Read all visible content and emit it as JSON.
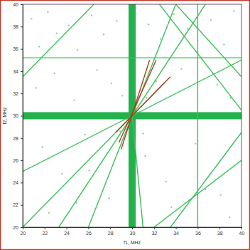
{
  "chart_data": {
    "type": "line",
    "xlabel": "f1, MHz",
    "ylabel": "f2, MHz",
    "xlim": [
      20,
      40
    ],
    "ylim": [
      20,
      40
    ],
    "xticks": [
      20,
      22,
      24,
      26,
      28,
      30,
      32,
      34,
      36,
      38,
      40
    ],
    "yticks": [
      20,
      22,
      24,
      26,
      28,
      30,
      32,
      34,
      36,
      38,
      40
    ],
    "grid": false,
    "series": [
      {
        "type": "scatter",
        "marker": "dot",
        "color": "#8fd49a",
        "x": [
          20.8,
          21.5,
          22.3,
          23.1,
          24.2,
          25.0,
          26.3,
          27.4,
          28.6,
          21.2,
          22.9,
          24.7,
          26.8,
          28.1,
          31.5,
          32.6,
          33.8,
          35.1,
          37.2,
          38.4,
          39.3,
          32.2,
          34.5,
          37.8,
          39.0,
          21.8,
          23.6,
          25.7,
          27.9,
          31.2,
          33.1,
          35.8,
          38.1,
          22.4,
          24.9,
          26.1,
          33.6,
          36.7,
          38.9,
          29.1,
          31.0,
          28.9,
          31.3
        ],
        "values": [
          38.7,
          36.2,
          39.3,
          37.4,
          38.1,
          35.9,
          39.0,
          37.3,
          38.5,
          32.5,
          33.8,
          31.4,
          34.1,
          32.9,
          38.2,
          36.9,
          39.1,
          37.8,
          38.6,
          36.4,
          39.4,
          33.1,
          34.2,
          32.8,
          31.6,
          27.2,
          24.8,
          28.3,
          22.6,
          26.4,
          24.1,
          27.5,
          22.9,
          21.3,
          22.2,
          25.1,
          21.8,
          23.4,
          20.9,
          31.8,
          28.4,
          28.6,
          31.6
        ]
      },
      {
        "color": "#22b14c",
        "line_style": "thick",
        "x": [
          30,
          30
        ],
        "values": [
          20,
          40
        ]
      },
      {
        "color": "#22b14c",
        "line_style": "thick",
        "x": [
          20,
          40
        ],
        "values": [
          30,
          30
        ]
      },
      {
        "color": "#3cc05a",
        "line_style": "solid",
        "x": [
          36,
          36
        ],
        "values": [
          20,
          40
        ]
      },
      {
        "color": "#3cc05a",
        "line_style": "solid",
        "x": [
          20,
          40
        ],
        "values": [
          35.2,
          35.2
        ]
      },
      {
        "color": "#3cc05a",
        "line_style": "solid",
        "x": [
          20,
          40
        ],
        "values": [
          25,
          35
        ]
      },
      {
        "color": "#3cc05a",
        "line_style": "solid",
        "x": [
          20,
          33
        ],
        "values": [
          20,
          33
        ]
      },
      {
        "color": "#3cc05a",
        "line_style": "solid",
        "x": [
          23.3,
          36.7
        ],
        "values": [
          20,
          40
        ]
      },
      {
        "color": "#3cc05a",
        "line_style": "solid",
        "x": [
          26,
          34
        ],
        "values": [
          20,
          40
        ]
      },
      {
        "color": "#3cc05a",
        "line_style": "solid",
        "x": [
          20,
          26.5
        ],
        "values": [
          33.5,
          40
        ]
      },
      {
        "color": "#3cc05a",
        "line_style": "solid",
        "x": [
          34,
          40
        ],
        "values": [
          40,
          33.5
        ]
      },
      {
        "color": "#3cc05a",
        "line_style": "solid",
        "x": [
          32.5,
          40
        ],
        "values": [
          40,
          30.5
        ]
      },
      {
        "color": "#3cc05a",
        "line_style": "solid",
        "x": [
          32,
          40
        ],
        "values": [
          20,
          26
        ]
      },
      {
        "color": "#3cc05a",
        "line_style": "solid",
        "x": [
          33.5,
          40
        ],
        "values": [
          20,
          28.5
        ]
      },
      {
        "color": "#3cc05a",
        "line_style": "solid",
        "x": [
          30,
          31
        ],
        "values": [
          30,
          20
        ]
      },
      {
        "color": "#b03a1e",
        "line_style": "solid",
        "x": [
          28.8,
          32.2
        ],
        "values": [
          27.6,
          35
        ]
      },
      {
        "color": "#b03a1e",
        "line_style": "solid",
        "x": [
          28.5,
          33.5
        ],
        "values": [
          28.5,
          33.5
        ]
      },
      {
        "color": "#b03a1e",
        "line_style": "solid",
        "x": [
          29,
          31.6
        ],
        "values": [
          27,
          35
        ]
      }
    ]
  }
}
